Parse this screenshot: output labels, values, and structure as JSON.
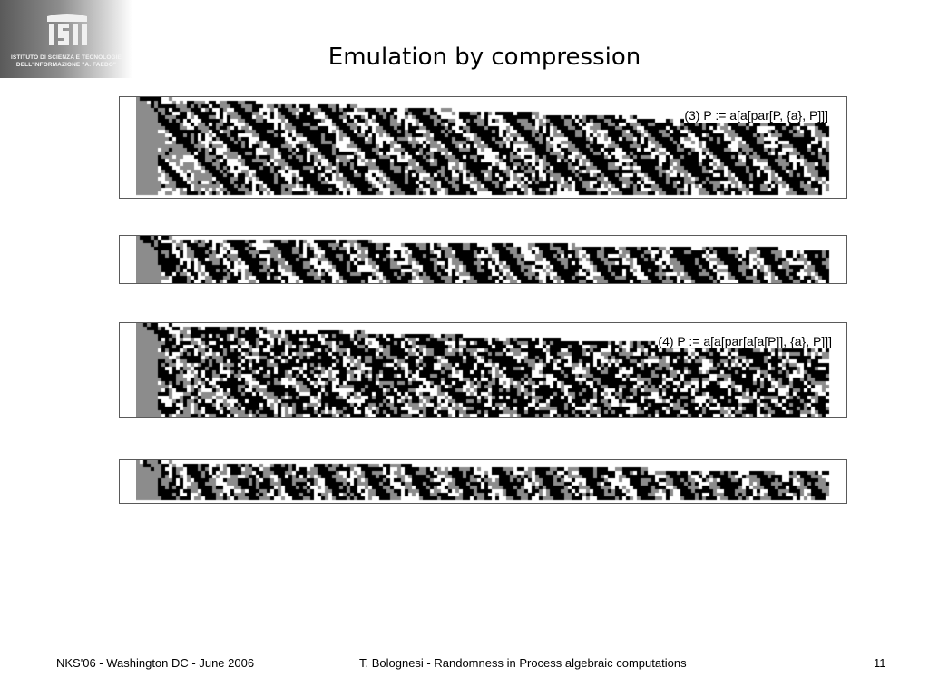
{
  "slide": {
    "title": "Emulation by compression",
    "page_number": "11"
  },
  "logo": {
    "mark": "ISTI",
    "line1": "ISTITUTO DI SCIENZA E TECNOLOGIE",
    "line2": "DELL'INFORMAZIONE \"A. FAEDO\""
  },
  "panels": [
    {
      "label": "(3) P := a[a[par[P, {a}, P]]]"
    },
    {
      "label": ""
    },
    {
      "label": "(4) P := a[a[par[a[a[P]], {a}, P]]]"
    },
    {
      "label": ""
    }
  ],
  "footer": {
    "left": "NKS'06 - Washington DC - June 2006",
    "center": "T. Bolognesi - Randomness in Process algebraic computations"
  },
  "colors": {
    "cell_black": "#000000",
    "cell_gray": "#8c8c8c",
    "cell_white": "#ffffff",
    "panel_border": "#5a5a5a"
  }
}
